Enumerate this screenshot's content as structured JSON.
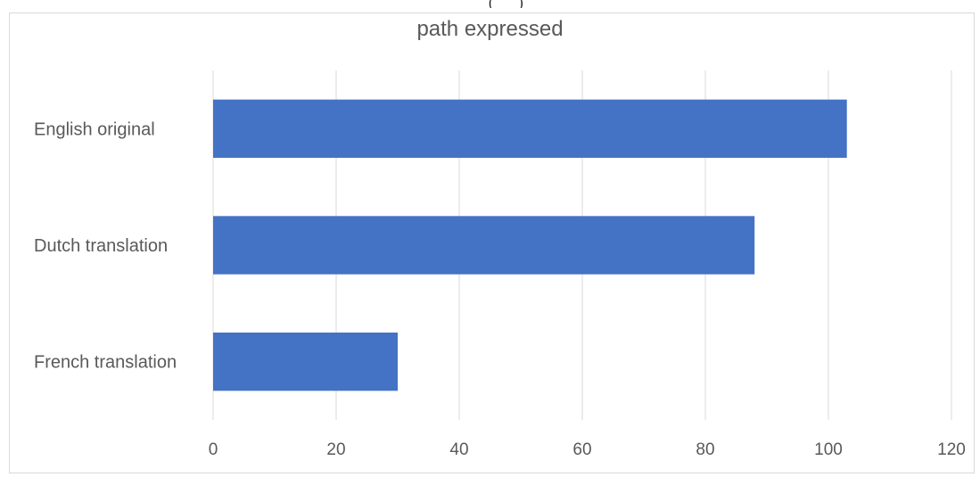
{
  "chart_data": {
    "type": "bar",
    "orientation": "horizontal",
    "title": "path expressed",
    "xlabel": "",
    "ylabel": "",
    "categories": [
      "English original",
      "Dutch translation",
      "French translation"
    ],
    "series": [
      {
        "values": [
          103,
          88,
          30
        ],
        "color": "#4472c4"
      }
    ],
    "xlim": [
      0,
      120
    ],
    "xticks": [
      "0",
      "20",
      "40",
      "60",
      "80",
      "100",
      "120"
    ],
    "grid": "vertical",
    "legend": "none"
  }
}
